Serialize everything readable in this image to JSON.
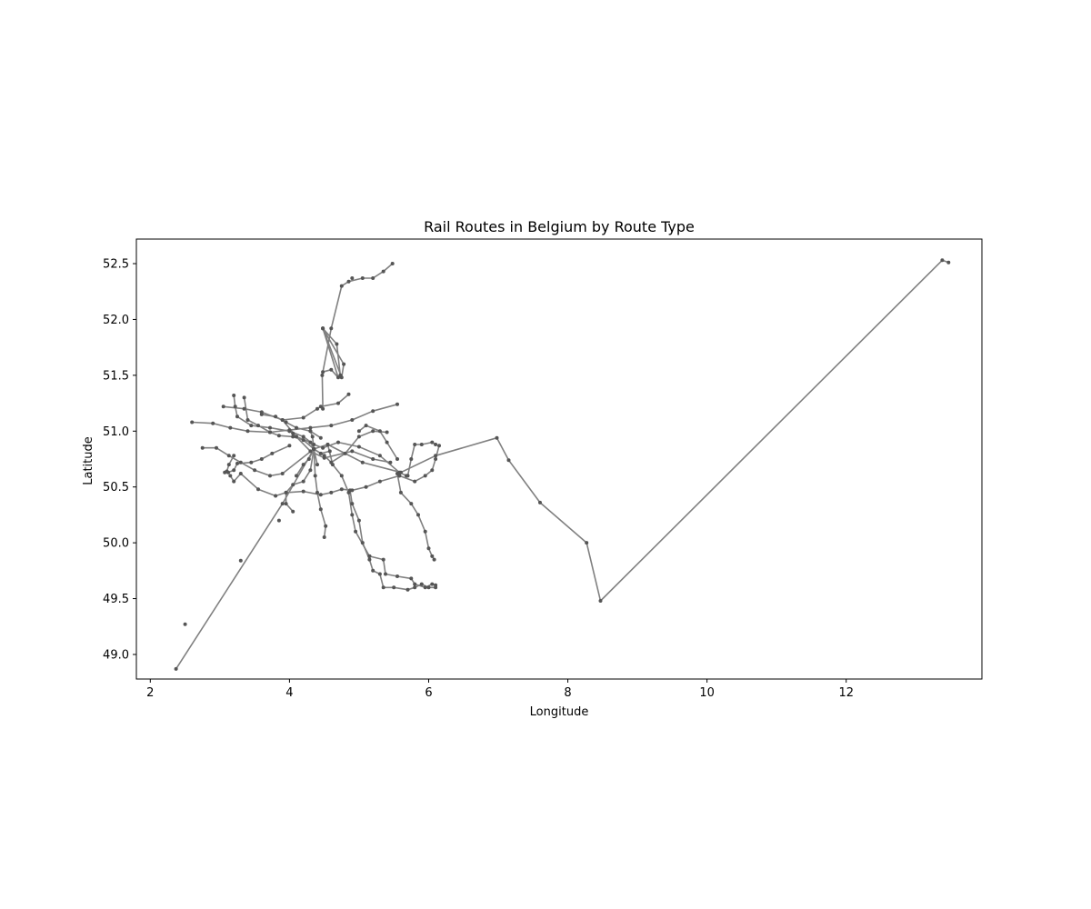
{
  "chart_data": {
    "type": "line",
    "title": "Rail Routes in Belgium by Route Type",
    "xlabel": "Longitude",
    "ylabel": "Latitude",
    "xlim": [
      1.8,
      13.95
    ],
    "ylim": [
      48.78,
      52.72
    ],
    "xticks": [
      2,
      4,
      6,
      8,
      10,
      12
    ],
    "yticks": [
      49.0,
      49.5,
      50.0,
      50.5,
      51.0,
      51.5,
      52.0,
      52.5
    ],
    "xtick_labels": [
      "2",
      "4",
      "6",
      "8",
      "10",
      "12"
    ],
    "ytick_labels": [
      "49.0",
      "49.5",
      "50.0",
      "50.5",
      "51.0",
      "51.5",
      "52.0",
      "52.5"
    ],
    "grid": false,
    "line_color": "#808080",
    "point_color": "#555555",
    "series": [
      {
        "x": [
          2.37,
          3.9,
          4.35,
          4.55,
          5.05,
          5.6,
          6.1,
          6.98,
          7.15,
          7.6,
          8.27,
          8.47,
          13.38,
          13.47
        ],
        "y": [
          48.87,
          50.35,
          50.84,
          50.88,
          50.72,
          50.63,
          50.78,
          50.94,
          50.74,
          50.36,
          50.0,
          49.48,
          52.53,
          52.51
        ]
      },
      {
        "x": [
          4.48,
          4.47,
          4.6,
          4.75,
          4.85,
          5.05,
          5.2,
          5.35,
          5.48
        ],
        "y": [
          51.2,
          51.5,
          51.92,
          52.3,
          52.34,
          52.37,
          52.37,
          52.43,
          52.5
        ]
      },
      {
        "x": [
          4.48,
          4.7,
          4.6,
          4.48
        ],
        "y": [
          51.92,
          51.48,
          51.55,
          51.53
        ]
      },
      {
        "x": [
          4.48,
          4.78,
          4.75,
          4.48
        ],
        "y": [
          51.92,
          51.6,
          51.48,
          51.92
        ]
      },
      {
        "x": [
          4.48,
          4.68,
          4.73
        ],
        "y": [
          51.92,
          51.78,
          51.5
        ]
      },
      {
        "x": [
          3.2,
          3.22,
          3.25,
          3.45,
          3.72,
          4.0,
          4.2,
          4.35,
          4.48,
          4.7,
          5.0,
          5.3,
          5.58,
          5.68
        ],
        "y": [
          51.32,
          51.22,
          51.13,
          51.05,
          51.03,
          51.0,
          50.95,
          50.88,
          50.85,
          50.9,
          50.86,
          50.78,
          50.63,
          50.6
        ]
      },
      {
        "x": [
          2.6,
          2.9,
          3.15,
          3.4,
          3.72,
          4.0,
          4.3,
          4.6,
          4.9,
          5.2,
          5.55
        ],
        "y": [
          51.08,
          51.07,
          51.03,
          51.0,
          50.99,
          51.01,
          51.03,
          51.05,
          51.1,
          51.18,
          51.24
        ]
      },
      {
        "x": [
          3.05,
          3.35,
          3.6,
          3.9,
          4.2,
          4.4,
          4.45,
          4.7,
          4.85
        ],
        "y": [
          51.22,
          51.2,
          51.17,
          51.1,
          51.12,
          51.2,
          51.22,
          51.25,
          51.33
        ]
      },
      {
        "x": [
          2.75,
          2.95,
          3.13,
          3.3,
          3.5,
          3.72,
          3.9,
          4.35
        ],
        "y": [
          50.85,
          50.85,
          50.78,
          50.72,
          50.65,
          50.6,
          50.62,
          50.84
        ]
      },
      {
        "x": [
          3.07,
          3.12,
          3.2,
          3.25,
          3.45,
          3.6,
          3.75,
          4.0
        ],
        "y": [
          50.63,
          50.63,
          50.65,
          50.71,
          50.72,
          50.75,
          50.8,
          50.87
        ]
      },
      {
        "x": [
          3.15,
          3.2,
          3.3,
          3.55,
          3.8,
          3.95,
          4.2,
          4.45,
          4.6,
          4.75,
          4.9,
          5.1,
          5.3,
          5.58
        ],
        "y": [
          50.6,
          50.55,
          50.62,
          50.48,
          50.42,
          50.45,
          50.46,
          50.43,
          50.45,
          50.48,
          50.47,
          50.5,
          50.55,
          50.6
        ]
      },
      {
        "x": [
          4.35,
          4.3,
          4.2,
          4.05,
          3.95,
          3.95,
          4.05
        ],
        "y": [
          50.84,
          50.65,
          50.55,
          50.52,
          50.45,
          50.35,
          50.28
        ]
      },
      {
        "x": [
          4.35,
          4.37,
          4.4,
          4.45,
          4.52,
          4.5
        ],
        "y": [
          50.84,
          50.6,
          50.45,
          50.3,
          50.15,
          50.05
        ]
      },
      {
        "x": [
          4.55,
          4.62,
          4.75,
          4.85,
          4.9,
          4.95,
          5.15
        ],
        "y": [
          50.88,
          50.7,
          50.6,
          50.45,
          50.25,
          50.1,
          49.88
        ]
      },
      {
        "x": [
          4.87,
          4.9,
          5.0,
          5.05,
          5.15,
          5.2,
          5.3,
          5.35,
          5.5,
          5.7,
          5.8,
          5.9,
          6.0,
          6.1
        ],
        "y": [
          50.47,
          50.35,
          50.2,
          50.0,
          49.85,
          49.75,
          49.72,
          49.6,
          49.6,
          49.58,
          49.6,
          49.63,
          49.6,
          49.6
        ]
      },
      {
        "x": [
          5.15,
          5.35,
          5.38,
          5.55,
          5.75,
          5.8,
          5.95,
          6.05,
          6.1
        ],
        "y": [
          49.88,
          49.85,
          49.72,
          49.7,
          49.68,
          49.63,
          49.6,
          49.63,
          49.62
        ]
      },
      {
        "x": [
          5.55,
          5.6,
          5.75,
          5.85,
          5.95,
          6.0,
          6.05,
          6.08
        ],
        "y": [
          50.62,
          50.45,
          50.35,
          50.25,
          50.1,
          49.95,
          49.88,
          49.85
        ]
      },
      {
        "x": [
          5.58,
          5.8,
          5.95,
          6.05,
          6.1,
          6.15
        ],
        "y": [
          50.6,
          50.55,
          50.6,
          50.65,
          50.75,
          50.87
        ]
      },
      {
        "x": [
          5.7,
          5.75,
          5.8,
          5.9,
          6.05,
          6.1
        ],
        "y": [
          50.6,
          50.75,
          50.88,
          50.88,
          50.9,
          50.88
        ]
      },
      {
        "x": [
          3.9,
          4.1,
          4.3,
          4.35,
          4.5,
          4.6,
          4.8,
          5.0,
          5.2,
          5.4
        ],
        "y": [
          51.1,
          50.95,
          50.9,
          50.84,
          50.78,
          50.72,
          50.8,
          50.95,
          51.0,
          50.99
        ]
      },
      {
        "x": [
          3.72,
          3.85,
          4.05,
          4.2,
          4.35,
          4.45,
          4.58
        ],
        "y": [
          50.99,
          50.96,
          50.95,
          50.92,
          50.84,
          50.8,
          50.82
        ]
      },
      {
        "x": [
          4.0,
          4.05,
          4.3,
          4.5,
          4.9,
          5.2,
          5.45
        ],
        "y": [
          51.0,
          50.98,
          50.82,
          50.76,
          50.82,
          50.75,
          50.72
        ]
      },
      {
        "x": [
          3.35,
          3.4,
          3.55,
          3.72
        ],
        "y": [
          51.3,
          51.1,
          51.05,
          50.99
        ]
      },
      {
        "x": [
          4.1,
          4.2,
          4.28,
          4.35
        ],
        "y": [
          50.6,
          50.7,
          50.75,
          50.84
        ]
      },
      {
        "x": [
          4.3,
          4.33,
          4.35,
          4.4
        ],
        "y": [
          51.0,
          50.95,
          50.84,
          50.7
        ]
      },
      {
        "x": [
          3.6,
          3.8,
          3.95,
          4.1,
          4.3,
          4.45
        ],
        "y": [
          51.15,
          51.13,
          51.08,
          51.03,
          51.0,
          50.94
        ]
      },
      {
        "x": [
          5.0,
          5.1,
          5.3,
          5.4,
          5.55
        ],
        "y": [
          51.0,
          51.05,
          51.0,
          50.9,
          50.75
        ]
      },
      {
        "x": [
          3.1,
          3.13,
          3.2
        ],
        "y": [
          50.64,
          50.7,
          50.78
        ]
      }
    ],
    "isolated_points": [
      {
        "x": 2.5,
        "y": 49.27
      },
      {
        "x": 3.3,
        "y": 49.84
      },
      {
        "x": 3.85,
        "y": 50.2
      },
      {
        "x": 4.9,
        "y": 52.37
      }
    ]
  }
}
